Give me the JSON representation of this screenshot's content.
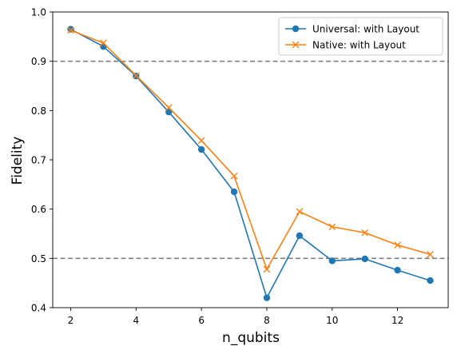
{
  "chart_data": {
    "type": "line",
    "xlabel": "n_qubits",
    "ylabel": "Fidelity",
    "xlim": [
      1.45,
      13.55
    ],
    "ylim": [
      0.4,
      1.0
    ],
    "x_ticks": [
      2,
      4,
      6,
      8,
      10,
      12
    ],
    "x_tick_labels": [
      "2",
      "4",
      "6",
      "8",
      "10",
      "12"
    ],
    "y_ticks": [
      0.4,
      0.5,
      0.6,
      0.7,
      0.8,
      0.9,
      1.0
    ],
    "y_tick_labels": [
      "0.4",
      "0.5",
      "0.6",
      "0.7",
      "0.8",
      "0.9",
      "1.0"
    ],
    "grid": false,
    "legend_position": "top-right",
    "reference_lines": [
      {
        "y": 0.9,
        "style": "dashed",
        "color": "#808080"
      },
      {
        "y": 0.5,
        "style": "dashed",
        "color": "#808080"
      }
    ],
    "x": [
      2,
      3,
      4,
      5,
      6,
      7,
      8,
      9,
      10,
      11,
      12,
      13
    ],
    "series": [
      {
        "name": "Universal: with Layout",
        "marker": "circle",
        "color": "#1f77b4",
        "values": [
          0.965,
          0.93,
          0.87,
          0.797,
          0.721,
          0.635,
          0.42,
          0.546,
          0.495,
          0.499,
          0.476,
          0.455
        ]
      },
      {
        "name": "Native: with Layout",
        "marker": "x",
        "color": "#ff7f0e",
        "values": [
          0.963,
          0.937,
          0.871,
          0.806,
          0.739,
          0.667,
          0.478,
          0.595,
          0.564,
          0.552,
          0.527,
          0.508
        ]
      }
    ]
  }
}
